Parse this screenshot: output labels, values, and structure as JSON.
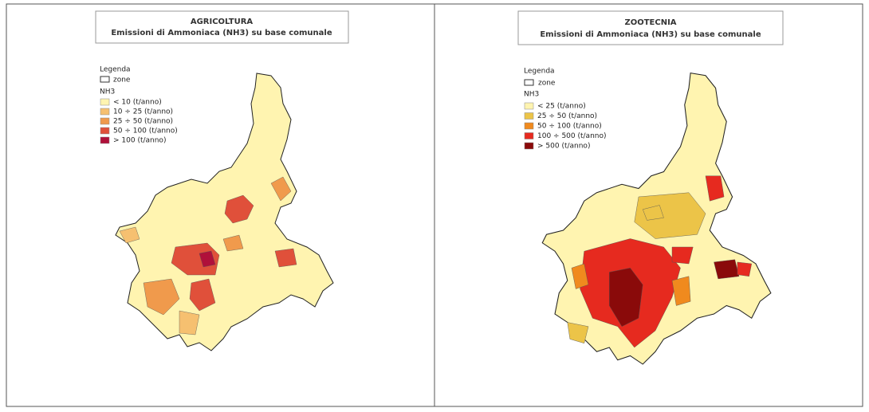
{
  "panels": [
    {
      "title": "AGRICOLTURA",
      "subtitle": "Emissioni di Ammoniaca (NH3) su base comunale",
      "legend": {
        "title": "Legenda",
        "zone_label": "zone",
        "variable": "NH3",
        "classes": [
          {
            "label": "< 10 (t/anno)",
            "color": "#fff4b0"
          },
          {
            "label": "10 ÷ 25 (t/anno)",
            "color": "#f6c070"
          },
          {
            "label": "25 ÷ 50 (t/anno)",
            "color": "#f09a4c"
          },
          {
            "label": "50 ÷ 100 (t/anno)",
            "color": "#e0503a"
          },
          {
            "label": "> 100 (t/anno)",
            "color": "#b0103a"
          }
        ]
      }
    },
    {
      "title": "ZOOTECNIA",
      "subtitle": "Emissioni di Ammoniaca (NH3) su base comunale",
      "legend": {
        "title": "Legenda",
        "zone_label": "zone",
        "variable": "NH3",
        "classes": [
          {
            "label": "< 25 (t/anno)",
            "color": "#fff4b0"
          },
          {
            "label": "25 ÷ 50 (t/anno)",
            "color": "#ecc448"
          },
          {
            "label": "50 ÷ 100 (t/anno)",
            "color": "#f08a1e"
          },
          {
            "label": "100 ÷ 500 (t/anno)",
            "color": "#e62a1f"
          },
          {
            "label": "> 500 (t/anno)",
            "color": "#8a0a0a"
          }
        ]
      }
    }
  ]
}
